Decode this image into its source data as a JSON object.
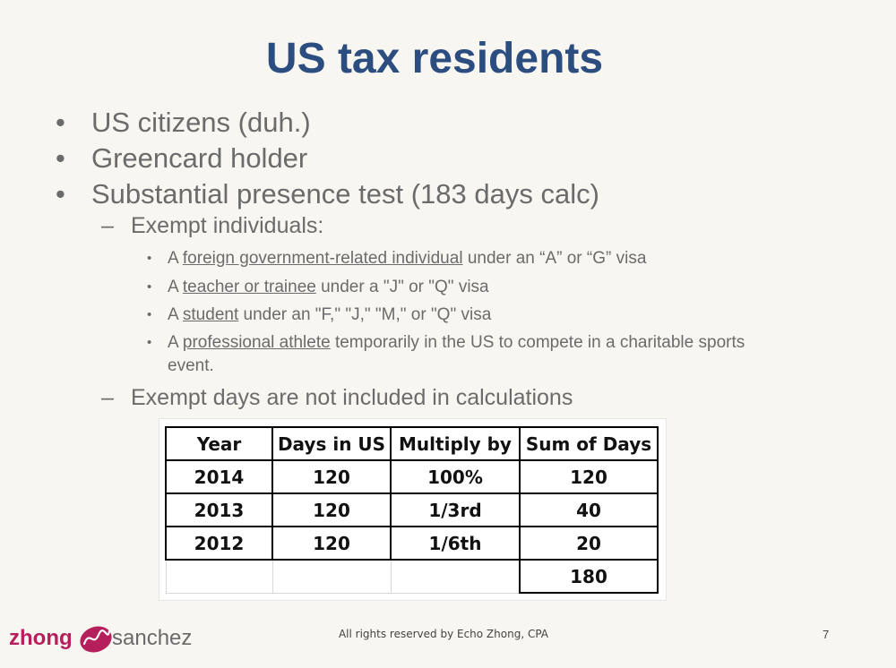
{
  "title": "US tax residents",
  "bullets": [
    "US citizens (duh.)",
    "Greencard holder",
    "Substantial presence test (183 days calc)"
  ],
  "sub1": "Exempt individuals:",
  "exempt_items": [
    {
      "pre": "A ",
      "link": "foreign government-related individual",
      "post": " under an “A” or “G” visa"
    },
    {
      "pre": "A ",
      "link": "teacher or trainee",
      "post": " under a \"J\" or \"Q\" visa"
    },
    {
      "pre": "A ",
      "link": "student",
      "post": " under an \"F,\" \"J,\" \"M,\" or \"Q\" visa"
    },
    {
      "pre": "A ",
      "link": "professional athlete",
      "post": " temporarily in the US to compete in a charitable sports event."
    }
  ],
  "sub2": "Exempt days are not included in calculations",
  "table": {
    "headers": [
      "Year",
      "Days in US",
      "Multiply by",
      "Sum of Days"
    ],
    "rows": [
      [
        "2014",
        "120",
        "100%",
        "120"
      ],
      [
        "2013",
        "120",
        "1/3rd",
        "40"
      ],
      [
        "2012",
        "120",
        "1/6th",
        "20"
      ]
    ],
    "total": "180"
  },
  "logo": {
    "left": "zhong",
    "right": "sanchez"
  },
  "footer": "All rights reserved by Echo Zhong, CPA",
  "page_number": "7"
}
